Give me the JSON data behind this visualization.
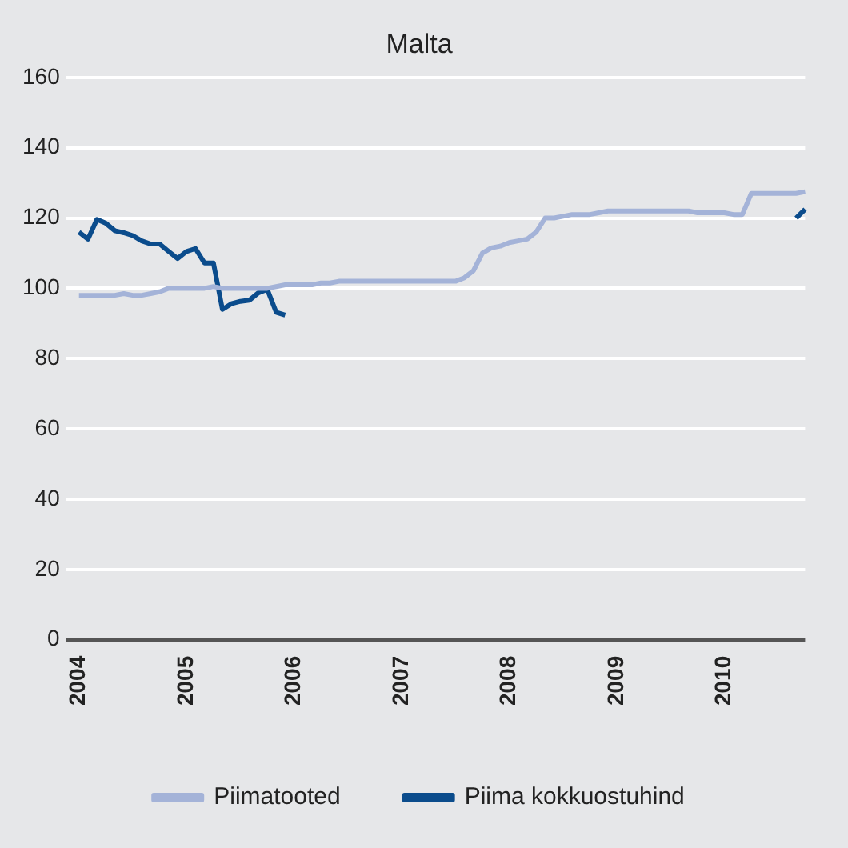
{
  "chart_data": {
    "type": "line",
    "title": "Malta",
    "categories": [
      "2004",
      null,
      null,
      null,
      null,
      null,
      null,
      null,
      null,
      null,
      null,
      null,
      "2005",
      null,
      null,
      null,
      null,
      null,
      null,
      null,
      null,
      null,
      null,
      null,
      "2006",
      null,
      null,
      null,
      null,
      null,
      null,
      null,
      null,
      null,
      null,
      null,
      "2007",
      null,
      null,
      null,
      null,
      null,
      null,
      null,
      null,
      null,
      null,
      null,
      "2008",
      null,
      null,
      null,
      null,
      null,
      null,
      null,
      null,
      null,
      null,
      null,
      "2009",
      null,
      null,
      null,
      null,
      null,
      null,
      null,
      null,
      null,
      null,
      null,
      "2010",
      null,
      null,
      null,
      null,
      null,
      null,
      null,
      null,
      null
    ],
    "series": [
      {
        "name": "Piimatooted",
        "color": "#a4b3d8",
        "values": [
          98,
          98,
          98,
          98,
          98,
          98.5,
          98,
          98,
          98.5,
          99,
          100,
          100,
          100,
          100,
          100,
          100.5,
          100,
          100,
          100,
          100,
          100,
          100,
          100.5,
          101,
          101,
          101,
          101,
          101.5,
          101.5,
          102,
          102,
          102,
          102,
          102,
          102,
          102,
          102,
          102,
          102,
          102,
          102,
          102,
          102,
          103,
          105,
          110,
          111.5,
          112,
          113,
          113.5,
          114,
          116,
          120,
          120,
          120.5,
          121,
          121,
          121,
          121.5,
          122,
          122,
          122,
          122,
          122,
          122,
          122,
          122,
          122,
          122,
          121.5,
          121.5,
          121.5,
          121.5,
          121,
          121,
          127,
          127,
          127,
          127,
          127,
          127,
          127.5
        ]
      },
      {
        "name": "Piima kokkuostuhind",
        "color": "#0b4c8c",
        "values": [
          116,
          114,
          119.6,
          118.5,
          116.4,
          115.8,
          115,
          113.5,
          112.6,
          112.6,
          110.5,
          108.5,
          110.5,
          111.3,
          107.2,
          107.2,
          94,
          95.6,
          96.3,
          96.6,
          98.7,
          99.7,
          93.2,
          92.4,
          null,
          null,
          null,
          null,
          null,
          null,
          null,
          null,
          null,
          null,
          null,
          null,
          null,
          null,
          null,
          null,
          null,
          null,
          null,
          null,
          null,
          null,
          null,
          null,
          null,
          null,
          null,
          null,
          null,
          null,
          null,
          null,
          null,
          null,
          null,
          null,
          null,
          null,
          null,
          null,
          null,
          null,
          null,
          null,
          null,
          null,
          null,
          null,
          null,
          null,
          null,
          null,
          null,
          null,
          null,
          null,
          120,
          122.5
        ]
      }
    ],
    "ylim": [
      0,
      160
    ],
    "yticks": [
      0,
      20,
      40,
      60,
      80,
      100,
      120,
      140,
      160
    ],
    "grid": "y",
    "legend": "bottom",
    "marker": "none",
    "line_style": "solid"
  }
}
